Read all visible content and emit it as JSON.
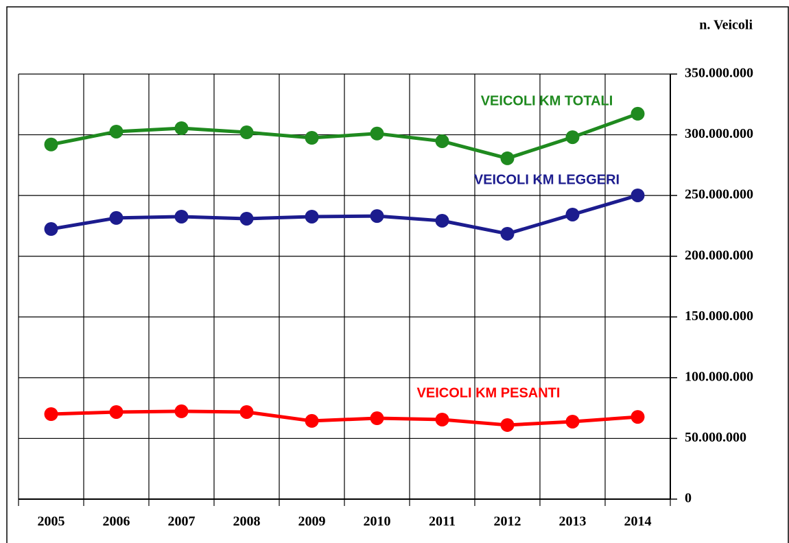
{
  "chart_data": {
    "type": "line",
    "y_label": "n. Veicoli",
    "categories": [
      "2005",
      "2006",
      "2007",
      "2008",
      "2009",
      "2010",
      "2011",
      "2012",
      "2013",
      "2014"
    ],
    "series": [
      {
        "name": "VEICOLI KM TOTALI",
        "color": "#1f8a1f",
        "values": [
          292000000,
          302600000,
          305400000,
          302000000,
          297500000,
          301000000,
          294700000,
          280600000,
          298000000,
          317300000
        ]
      },
      {
        "name": "VEICOLI KM LEGGERI",
        "color": "#1c1c8e",
        "values": [
          222400000,
          231500000,
          232600000,
          230900000,
          232600000,
          233100000,
          229200000,
          218500000,
          234300000,
          250100000
        ]
      },
      {
        "name": "VEICOLI KM PESANTI",
        "color": "#ff0000",
        "values": [
          70000000,
          71700000,
          72300000,
          71700000,
          64400000,
          66600000,
          65500000,
          61000000,
          63800000,
          67700000
        ]
      }
    ],
    "ylim": [
      0,
      350000000
    ],
    "yticks": [
      0,
      {
        "value": 50000000,
        "label": "50.000.000"
      },
      {
        "value": 100000000,
        "label": "100.000.000"
      },
      {
        "value": 150000000,
        "label": "150.000.000"
      },
      {
        "value": 200000000,
        "label": "200.000.000"
      },
      {
        "value": 250000000,
        "label": "250.000.000"
      },
      {
        "value": 300000000,
        "label": "300.000.000"
      },
      {
        "value": 350000000,
        "label": "350.000.000"
      }
    ],
    "grid": true
  }
}
